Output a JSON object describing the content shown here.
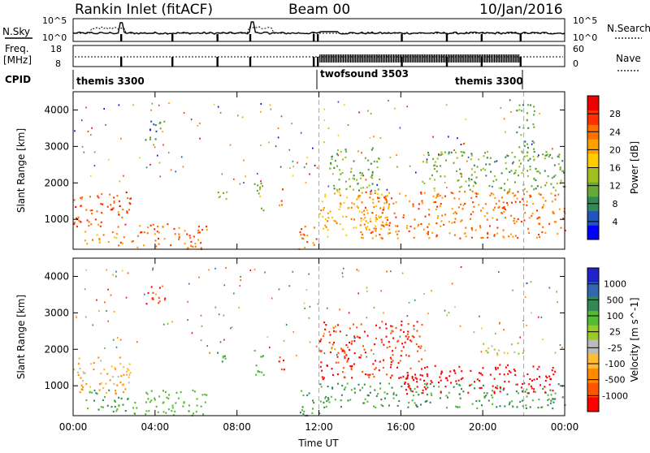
{
  "header": {
    "station": "Rankin Inlet (fitACF)",
    "beam": "Beam 00",
    "date": "10/Jan/2016"
  },
  "nsky_panel": {
    "left_label": "N.Sky",
    "right_label": "N.Search",
    "left_ticks": [
      "10^5",
      "10^0"
    ],
    "right_ticks": [
      "10^5",
      "10^0"
    ]
  },
  "freq_panel": {
    "left_label": "Freq.",
    "left_unit": "[MHz]",
    "right_label": "Nave",
    "left_ticks": [
      "18",
      "8"
    ],
    "right_ticks": [
      "60",
      "0"
    ]
  },
  "cpid_panel": {
    "label": "CPID",
    "programs": [
      {
        "name": "themis 3300",
        "start": 0,
        "end": 12
      },
      {
        "name": "twofsound 3503",
        "start": 12,
        "end": 22
      },
      {
        "name": "themis 3300",
        "start": 22,
        "end": 24
      }
    ]
  },
  "chart_data": [
    {
      "type": "heatmap",
      "title": "Power",
      "xlabel": "Time UT",
      "ylabel": "Slant Range [km]",
      "xlim": [
        0,
        24
      ],
      "ylim": [
        180,
        4500
      ],
      "x_ticks": [
        "00:00",
        "04:00",
        "08:00",
        "12:00",
        "16:00",
        "20:00",
        "00:00"
      ],
      "y_ticks": [
        1000,
        2000,
        3000,
        4000
      ],
      "colorbar": {
        "label": "Power [dB]",
        "ticks": [
          4,
          8,
          12,
          16,
          20,
          24,
          28
        ],
        "range": [
          0,
          32
        ],
        "colors": [
          "#0000ff",
          "#2255bb",
          "#2e8b57",
          "#66aa33",
          "#a0c020",
          "#ffcc00",
          "#ffa000",
          "#ff7000",
          "#ff3000",
          "#ee0000"
        ]
      },
      "regions": [
        {
          "t": [
            0.0,
            2.8
          ],
          "r": [
            800,
            1800
          ],
          "v": 26
        },
        {
          "t": [
            0.5,
            2.5
          ],
          "r": [
            300,
            700
          ],
          "v": 22
        },
        {
          "t": [
            2.8,
            6.5
          ],
          "r": [
            200,
            900
          ],
          "v": 24
        },
        {
          "t": [
            3.5,
            4.5
          ],
          "r": [
            3200,
            3800
          ],
          "v": 8
        },
        {
          "t": [
            7.0,
            7.5
          ],
          "r": [
            1500,
            2000
          ],
          "v": 14
        },
        {
          "t": [
            8.8,
            9.3
          ],
          "r": [
            1200,
            2100
          ],
          "v": 14
        },
        {
          "t": [
            10.0,
            10.3
          ],
          "r": [
            1400,
            2000
          ],
          "v": 24
        },
        {
          "t": [
            11.0,
            12.0
          ],
          "r": [
            200,
            900
          ],
          "v": 24
        },
        {
          "t": [
            12.0,
            15.5
          ],
          "r": [
            500,
            1800
          ],
          "v": 20
        },
        {
          "t": [
            12.5,
            15.0
          ],
          "r": [
            1800,
            3000
          ],
          "v": 12
        },
        {
          "t": [
            14.0,
            24.0
          ],
          "r": [
            500,
            1800
          ],
          "v": 24
        },
        {
          "t": [
            17.0,
            24.0
          ],
          "r": [
            1800,
            2900
          ],
          "v": 12
        },
        {
          "t": [
            21.5,
            22.5
          ],
          "r": [
            2800,
            4200
          ],
          "v": 10
        }
      ]
    },
    {
      "type": "heatmap",
      "title": "Velocity",
      "xlabel": "Time UT",
      "ylabel": "Slant Range [km]",
      "xlim": [
        0,
        24
      ],
      "ylim": [
        180,
        4500
      ],
      "x_ticks": [
        "00:00",
        "04:00",
        "08:00",
        "12:00",
        "16:00",
        "20:00",
        "00:00"
      ],
      "y_ticks": [
        1000,
        2000,
        3000,
        4000
      ],
      "colorbar": {
        "label": "Velocity [m s^-1]",
        "ticks": [
          "1000",
          "500",
          "100",
          "25",
          "-25",
          "-100",
          "-500",
          "-1000"
        ],
        "colors": [
          "#2222cc",
          "#3366aa",
          "#338855",
          "#55bb33",
          "#99cc22",
          "#bbbbbb",
          "#ffbb33",
          "#ff8c00",
          "#ff5500",
          "#ff0000"
        ]
      },
      "regions": [
        {
          "t": [
            0.0,
            2.8
          ],
          "r": [
            800,
            1800
          ],
          "v": -100
        },
        {
          "t": [
            0.5,
            2.8
          ],
          "r": [
            300,
            900
          ],
          "v": 300
        },
        {
          "t": [
            2.8,
            6.5
          ],
          "r": [
            200,
            900
          ],
          "v": 200
        },
        {
          "t": [
            3.5,
            4.5
          ],
          "r": [
            3200,
            3800
          ],
          "v": -500
        },
        {
          "t": [
            7.0,
            7.5
          ],
          "r": [
            1500,
            2000
          ],
          "v": 300
        },
        {
          "t": [
            8.8,
            9.3
          ],
          "r": [
            1200,
            2100
          ],
          "v": 200
        },
        {
          "t": [
            10.0,
            10.3
          ],
          "r": [
            1400,
            2100
          ],
          "v": -500
        },
        {
          "t": [
            11.0,
            12.0
          ],
          "r": [
            200,
            900
          ],
          "v": 300
        },
        {
          "t": [
            12.0,
            17.0
          ],
          "r": [
            1200,
            2800
          ],
          "v": -500
        },
        {
          "t": [
            12.0,
            24.0
          ],
          "r": [
            400,
            1100
          ],
          "v": 300
        },
        {
          "t": [
            16.0,
            23.5
          ],
          "r": [
            800,
            1600
          ],
          "v": -1000
        },
        {
          "t": [
            20.0,
            22.0
          ],
          "r": [
            1800,
            2200
          ],
          "v": 0
        }
      ]
    }
  ]
}
